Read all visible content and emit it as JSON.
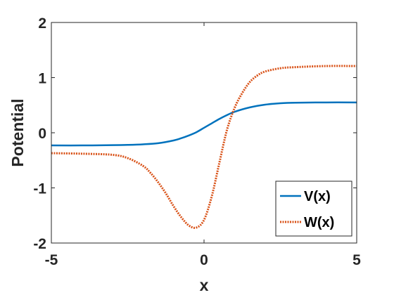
{
  "chart_data": {
    "type": "line",
    "title": "",
    "xlabel": "x",
    "ylabel": "Potential",
    "xlim": [
      -5,
      5
    ],
    "ylim": [
      -2,
      2
    ],
    "xticks": [
      "-5",
      "0",
      "5"
    ],
    "yticks": [
      "-2",
      "-1",
      "0",
      "1",
      "2"
    ],
    "grid": false,
    "legend_position": "bottom-right",
    "series": [
      {
        "name": "V(x)",
        "color": "#0072BD",
        "style": "solid",
        "x": [
          -5,
          -4,
          -3,
          -2.5,
          -2,
          -1.5,
          -1,
          -0.75,
          -0.5,
          -0.25,
          0,
          0.25,
          0.5,
          0.75,
          1,
          1.5,
          2,
          2.5,
          3,
          4,
          5
        ],
        "y": [
          -0.23,
          -0.23,
          -0.225,
          -0.22,
          -0.21,
          -0.19,
          -0.14,
          -0.1,
          -0.05,
          0.01,
          0.09,
          0.17,
          0.25,
          0.32,
          0.38,
          0.46,
          0.51,
          0.535,
          0.545,
          0.55,
          0.55
        ]
      },
      {
        "name": "W(x)",
        "color": "#D95319",
        "style": "dotted",
        "x": [
          -5,
          -4,
          -3,
          -2.5,
          -2,
          -1.75,
          -1.5,
          -1.25,
          -1,
          -0.75,
          -0.5,
          -0.25,
          0,
          0.25,
          0.5,
          0.75,
          1,
          1.25,
          1.5,
          1.75,
          2,
          2.5,
          3,
          4,
          5
        ],
        "y": [
          -0.37,
          -0.38,
          -0.4,
          -0.46,
          -0.6,
          -0.73,
          -0.9,
          -1.1,
          -1.33,
          -1.53,
          -1.68,
          -1.72,
          -1.58,
          -1.16,
          -0.55,
          0.05,
          0.45,
          0.72,
          0.92,
          1.04,
          1.11,
          1.17,
          1.19,
          1.21,
          1.21
        ]
      }
    ]
  }
}
